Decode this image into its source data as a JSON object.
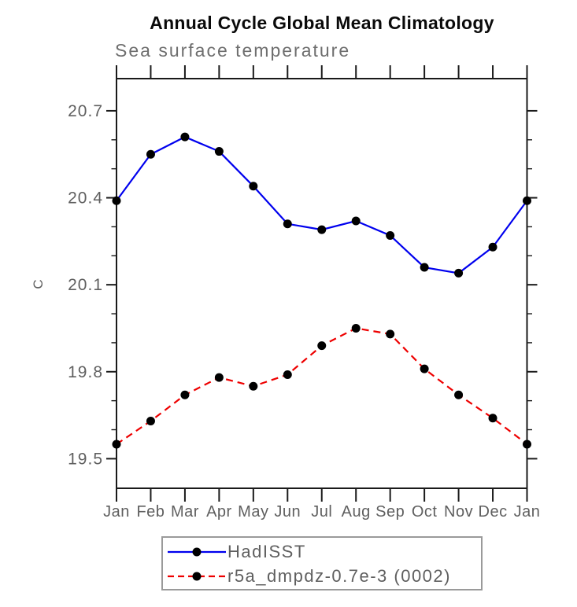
{
  "chart_data": {
    "type": "line",
    "title": "Annual Cycle Global Mean Climatology",
    "subtitle": "Sea surface temperature",
    "ylabel": "C",
    "xlabel": "",
    "x_categories": [
      "Jan",
      "Feb",
      "Mar",
      "Apr",
      "May",
      "Jun",
      "Jul",
      "Aug",
      "Sep",
      "Oct",
      "Nov",
      "Dec",
      "Jan"
    ],
    "ylim": [
      19.398,
      20.811
    ],
    "yticks_major": [
      19.5,
      19.8,
      20.1,
      20.4,
      20.7
    ],
    "ytick_labels": [
      "19.5",
      "19.8",
      "20.1",
      "20.4",
      "20.7"
    ],
    "yticks_minor": [
      19.6,
      19.7,
      19.9,
      20.0,
      20.2,
      20.3,
      20.5,
      20.6
    ],
    "grid": false,
    "legend_position": "bottom",
    "series": [
      {
        "name": "HadISST",
        "color": "#0000ee",
        "style": "solid",
        "marker": "circle",
        "marker_color": "#000000",
        "values": [
          20.39,
          20.55,
          20.61,
          20.56,
          20.44,
          20.31,
          20.29,
          20.32,
          20.27,
          20.16,
          20.14,
          20.23,
          20.39
        ]
      },
      {
        "name": "r5a_dmpdz-0.7e-3 (0002)",
        "color": "#ee0000",
        "style": "dashed",
        "marker": "circle",
        "marker_color": "#000000",
        "values": [
          19.55,
          19.63,
          19.72,
          19.78,
          19.75,
          19.79,
          19.89,
          19.95,
          19.93,
          19.81,
          19.72,
          19.64,
          19.55
        ]
      }
    ]
  },
  "colors": {
    "axis": "#1a1a1a",
    "label_text": "#5f5f5f",
    "title_text": "#0a0a0a",
    "legend_border": "#9a9a9a",
    "background": "#ffffff"
  }
}
